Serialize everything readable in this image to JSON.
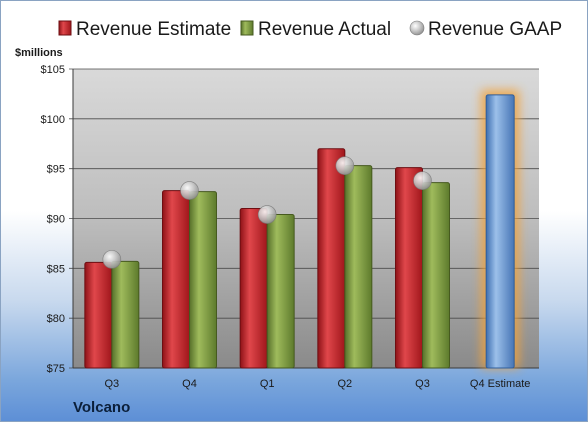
{
  "chart_data": {
    "type": "bar",
    "unit_label": "$millions",
    "categories": [
      "Q3",
      "Q4",
      "Q1",
      "Q2",
      "Q3",
      "Q4 Estimate"
    ],
    "series": [
      {
        "name": "Revenue Estimate",
        "color": "#c0282d",
        "values": [
          85.6,
          92.8,
          91.0,
          97.0,
          95.1,
          null
        ]
      },
      {
        "name": "Revenue Actual",
        "color": "#7c9a3c",
        "values": [
          85.7,
          92.7,
          90.4,
          95.3,
          93.6,
          null
        ]
      },
      {
        "name": "Revenue GAAP",
        "color": "#b8b8b8",
        "values": [
          85.9,
          92.8,
          90.4,
          95.3,
          93.8,
          null
        ]
      }
    ],
    "highlight": {
      "category": "Q4 Estimate",
      "value": 102.4,
      "color": "#6f9bd1",
      "glow": "#f2a33a"
    },
    "ylim": [
      75,
      105
    ],
    "yticks": [
      "$75",
      "$80",
      "$85",
      "$90",
      "$95",
      "$100",
      "$105"
    ],
    "ytick_values": [
      75,
      80,
      85,
      90,
      95,
      100,
      105
    ],
    "grid": true,
    "legend_position": "top"
  },
  "footer": {
    "company": "Volcano"
  }
}
